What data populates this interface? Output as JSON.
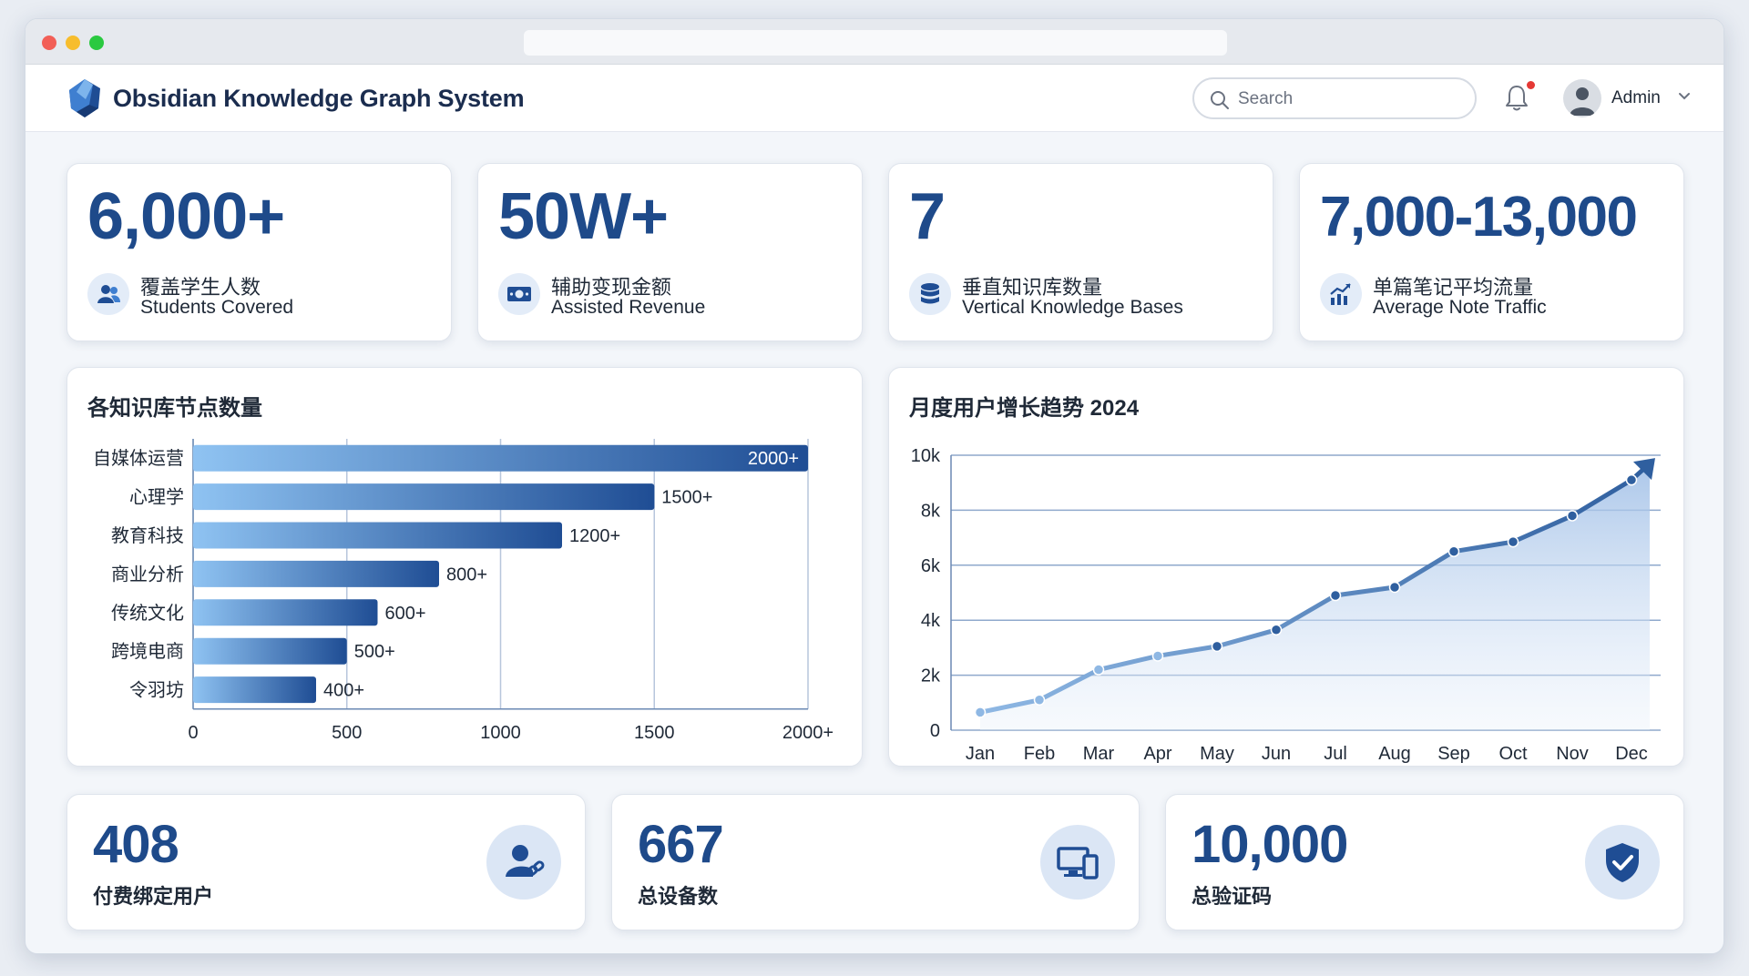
{
  "app": {
    "title": "Obsidian Knowledge Graph System"
  },
  "header": {
    "search_placeholder": "Search",
    "user_name": "Admin",
    "has_notification": true
  },
  "colors": {
    "brand_dark": "#1e4a8a",
    "bar_light": "#8fc3f2",
    "bar_dark": "#1f4d94",
    "line": "#2f5f9f",
    "line_light": "#8fb8e4",
    "notification": "#e53935"
  },
  "stats": [
    {
      "value": "6,000+",
      "label_cn": "覆盖学生人数",
      "label_en": "Students Covered",
      "icon": "users-icon"
    },
    {
      "value": "50W+",
      "label_cn": "辅助变现金额",
      "label_en": "Assisted Revenue",
      "icon": "money-icon"
    },
    {
      "value": "7",
      "label_cn": "垂直知识库数量",
      "label_en": "Vertical Knowledge Bases",
      "icon": "database-icon"
    },
    {
      "value": "7,000-13,000",
      "label_cn": "单篇笔记平均流量",
      "label_en": "Average Note Traffic",
      "icon": "growth-chart-icon"
    }
  ],
  "bottom_stats": [
    {
      "value": "408",
      "label": "付费绑定用户",
      "icon": "user-link-icon"
    },
    {
      "value": "667",
      "label": "总设备数",
      "icon": "devices-icon"
    },
    {
      "value": "10,000",
      "label": "总验证码",
      "icon": "shield-check-icon"
    }
  ],
  "chart_data": [
    {
      "type": "bar",
      "orientation": "horizontal",
      "title": "各知识库节点数量",
      "categories": [
        "自媒体运营",
        "心理学",
        "教育科技",
        "商业分析",
        "传统文化",
        "跨境电商",
        "令羽坊"
      ],
      "values": [
        2000,
        1500,
        1200,
        800,
        600,
        500,
        400
      ],
      "data_labels": [
        "2000+",
        "1500+",
        "1200+",
        "800+",
        "600+",
        "500+",
        "400+"
      ],
      "xlim": [
        0,
        2000
      ],
      "xticks": [
        0,
        500,
        1000,
        1500,
        2000
      ],
      "xtick_labels": [
        "0",
        "500",
        "1000",
        "1500",
        "2000+"
      ],
      "grid": true
    },
    {
      "type": "area",
      "title": "月度用户增长趋势 2024",
      "categories": [
        "Jan",
        "Feb",
        "Mar",
        "Apr",
        "May",
        "Jun",
        "Jul",
        "Aug",
        "Sep",
        "Oct",
        "Nov",
        "Dec"
      ],
      "values": [
        650,
        1100,
        2200,
        2700,
        3050,
        3650,
        4900,
        5200,
        6500,
        6850,
        7800,
        9100
      ],
      "ylim": [
        0,
        10000
      ],
      "yticks": [
        0,
        2000,
        4000,
        6000,
        8000,
        10000
      ],
      "ytick_labels": [
        "0",
        "2k",
        "4k",
        "6k",
        "8k",
        "10k"
      ],
      "grid": true
    }
  ]
}
